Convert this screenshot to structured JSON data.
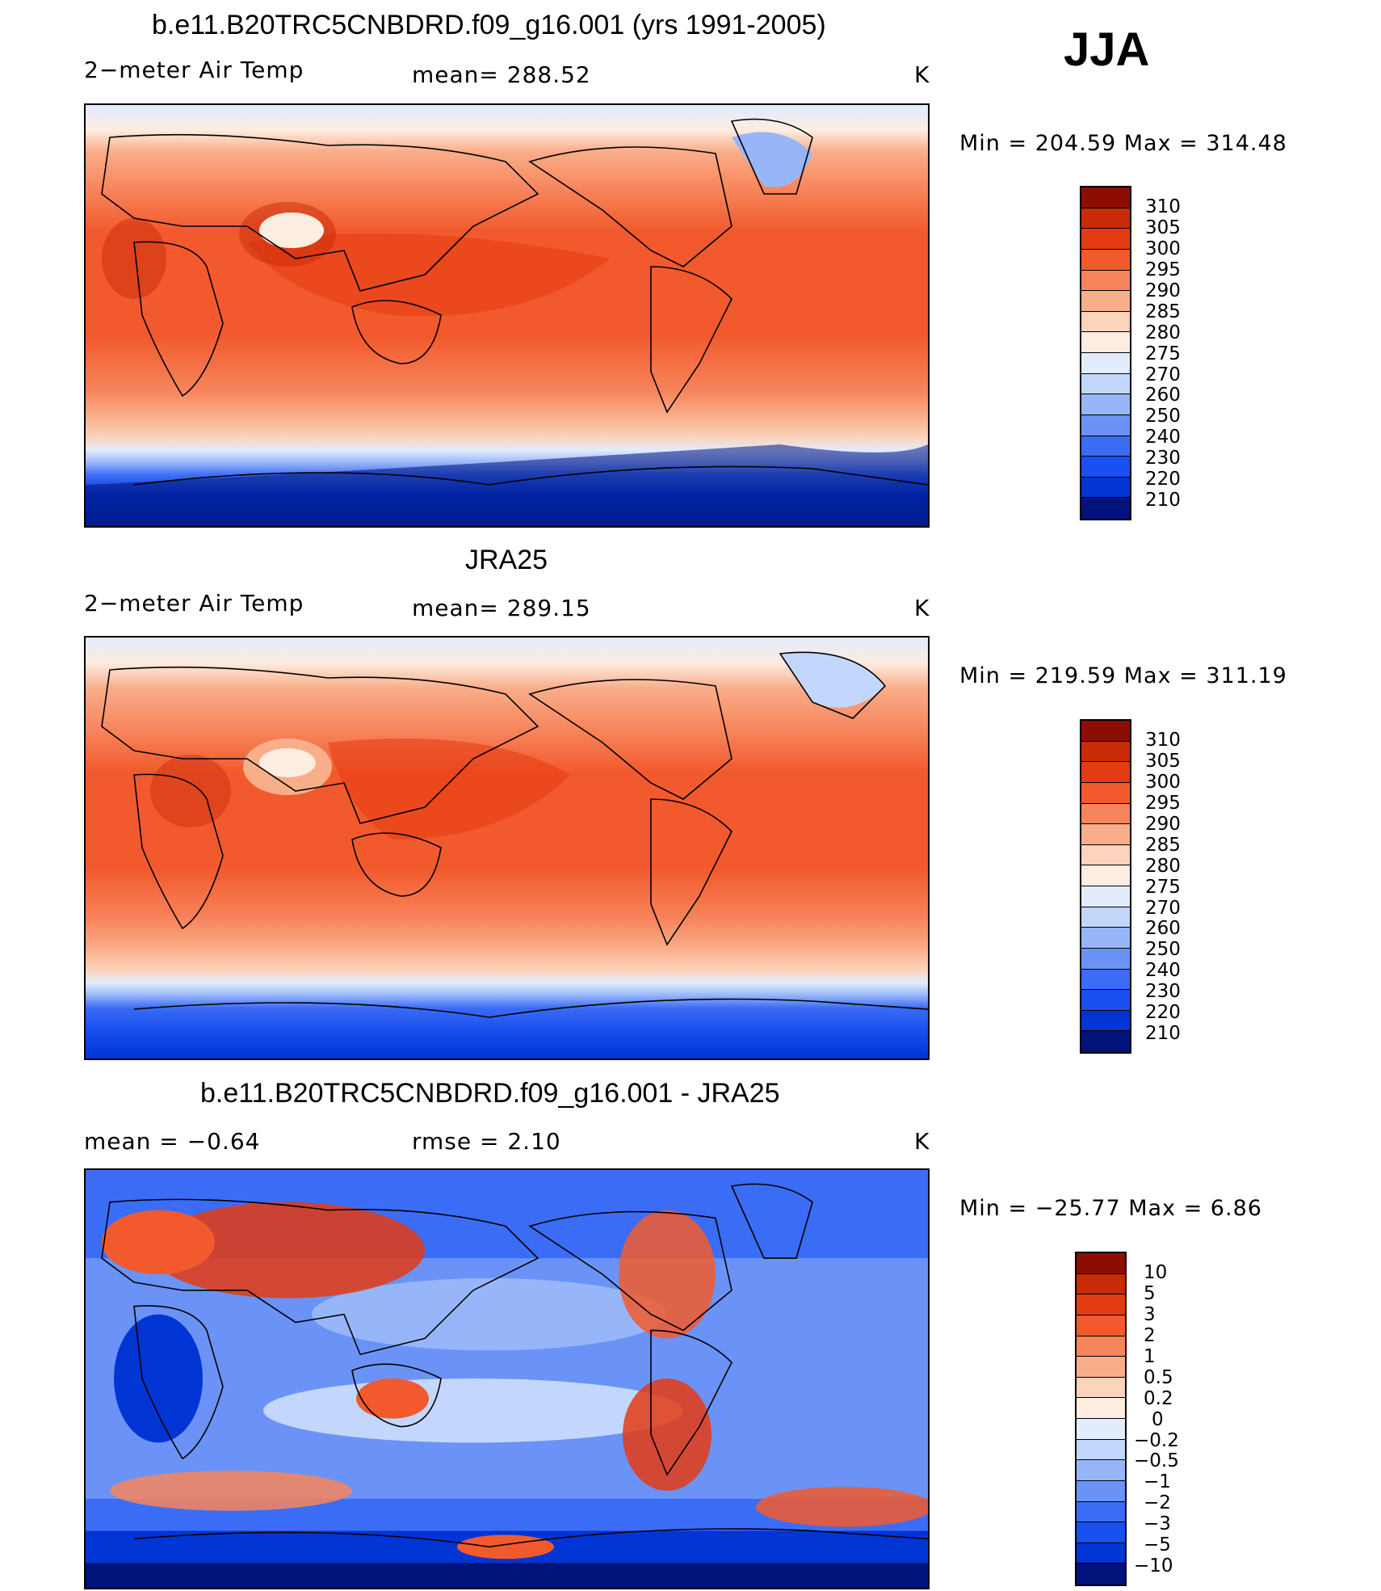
{
  "season": "JJA",
  "colors": {
    "temp_scale": [
      "#00137a",
      "#0026a8",
      "#0035d4",
      "#1a4ff0",
      "#3b6cf5",
      "#6b93f7",
      "#97b6fa",
      "#c3d7fc",
      "#e2ecfd",
      "#fdece0",
      "#fcd3bb",
      "#f9ae8a",
      "#f7855c",
      "#f25a2d",
      "#e53b12",
      "#c92a08",
      "#8c0e02"
    ],
    "diff_scale": [
      "#00137a",
      "#0026a8",
      "#0035d4",
      "#1a4ff0",
      "#3b6cf5",
      "#6b93f7",
      "#97b6fa",
      "#c3d7fc",
      "#e2ecfd",
      "#fdece0",
      "#fcd3bb",
      "#f9ae8a",
      "#f7855c",
      "#f25a2d",
      "#e53b12",
      "#c92a08",
      "#8c0e02"
    ]
  },
  "panels": [
    {
      "title": "b.e11.B20TRC5CNBDRD.f09_g16.001 (yrs 1991-2005)",
      "left_label": "2−meter Air Temp",
      "center_label": "mean=  288.52",
      "units": "K",
      "minmax": "Min  =  204.59  Max  =  314.48",
      "colorbar_labels": [
        "310",
        "305",
        "300",
        "295",
        "290",
        "285",
        "280",
        "275",
        "270",
        "260",
        "250",
        "240",
        "230",
        "220",
        "210"
      ]
    },
    {
      "title": "JRA25",
      "left_label": "2−meter Air Temp",
      "center_label": "mean=  289.15",
      "units": "K",
      "minmax": "Min  =  219.59  Max  =  311.19",
      "colorbar_labels": [
        "310",
        "305",
        "300",
        "295",
        "290",
        "285",
        "280",
        "275",
        "270",
        "260",
        "250",
        "240",
        "230",
        "220",
        "210"
      ]
    },
    {
      "title": "b.e11.B20TRC5CNBDRD.f09_g16.001 - JRA25",
      "left_label": "mean  =     −0.64",
      "center_label": "rmse  =     2.10",
      "units": "K",
      "minmax": "Min  =  −25.77  Max  =      6.86",
      "colorbar_labels": [
        "10",
        "5",
        "3",
        "2",
        "1",
        "0.5",
        "0.2",
        "0",
        "−0.2",
        "−0.5",
        "−1",
        "−2",
        "−3",
        "−5",
        "−10"
      ]
    }
  ]
}
